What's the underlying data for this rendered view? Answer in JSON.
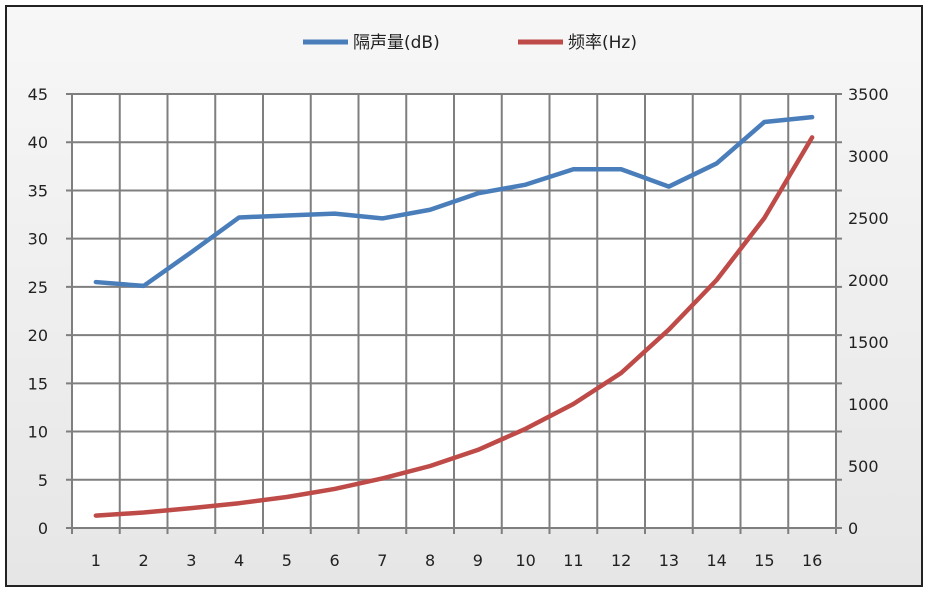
{
  "chart_data": {
    "type": "line",
    "categories": [
      "1",
      "2",
      "3",
      "4",
      "5",
      "6",
      "7",
      "8",
      "9",
      "10",
      "11",
      "12",
      "13",
      "14",
      "15",
      "16"
    ],
    "series": [
      {
        "name": "隔声量(dB)",
        "axis": "left",
        "color": "#4a7ebb",
        "values": [
          25.5,
          25.1,
          28.6,
          32.2,
          32.4,
          32.6,
          32.1,
          33.0,
          34.7,
          35.6,
          37.2,
          37.2,
          35.4,
          37.8,
          42.1,
          42.6
        ]
      },
      {
        "name": "频率(Hz)",
        "axis": "right",
        "color": "#be4b48",
        "values": [
          100,
          125,
          160,
          200,
          250,
          315,
          400,
          500,
          630,
          800,
          1000,
          1250,
          1600,
          2000,
          2500,
          3150
        ]
      }
    ],
    "y_left": {
      "min": 0,
      "max": 45,
      "step": 5,
      "ticks": [
        "0",
        "5",
        "10",
        "15",
        "20",
        "25",
        "30",
        "35",
        "40",
        "45"
      ]
    },
    "y_right": {
      "min": 0,
      "max": 3500,
      "step": 500,
      "ticks": [
        "0",
        "500",
        "1000",
        "1500",
        "2000",
        "2500",
        "3000",
        "3500"
      ]
    },
    "grid": true,
    "legend": "top-center",
    "title": "",
    "xlabel": "",
    "ylabel": ""
  }
}
